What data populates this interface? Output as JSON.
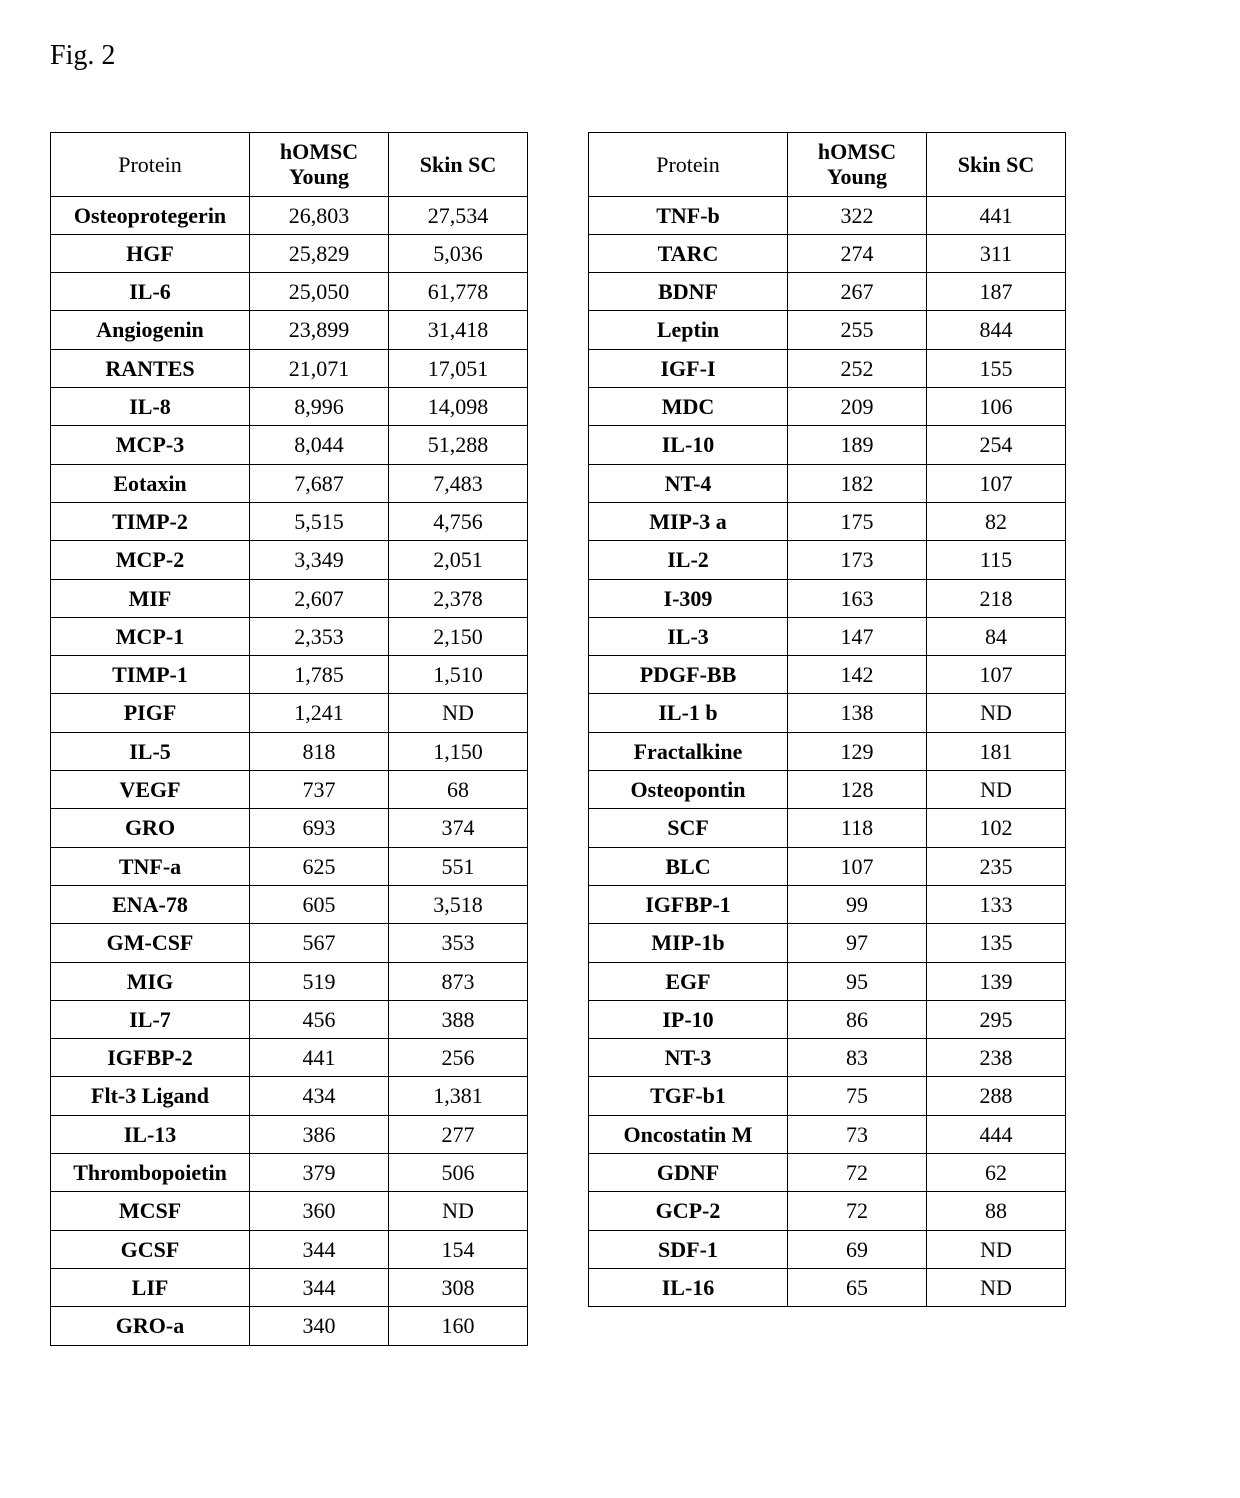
{
  "figure_label": "Fig. 2",
  "headers": {
    "protein": "Protein",
    "homsc": "hOMSC Young",
    "skin": "Skin SC"
  },
  "left_rows": [
    {
      "p": "Osteoprotegerin",
      "a": "26,803",
      "b": "27,534"
    },
    {
      "p": "HGF",
      "a": "25,829",
      "b": "5,036"
    },
    {
      "p": "IL-6",
      "a": "25,050",
      "b": "61,778"
    },
    {
      "p": "Angiogenin",
      "a": "23,899",
      "b": "31,418"
    },
    {
      "p": "RANTES",
      "a": "21,071",
      "b": "17,051"
    },
    {
      "p": "IL-8",
      "a": "8,996",
      "b": "14,098"
    },
    {
      "p": "MCP-3",
      "a": "8,044",
      "b": "51,288"
    },
    {
      "p": "Eotaxin",
      "a": "7,687",
      "b": "7,483"
    },
    {
      "p": "TIMP-2",
      "a": "5,515",
      "b": "4,756"
    },
    {
      "p": "MCP-2",
      "a": "3,349",
      "b": "2,051"
    },
    {
      "p": "MIF",
      "a": "2,607",
      "b": "2,378"
    },
    {
      "p": "MCP-1",
      "a": "2,353",
      "b": "2,150"
    },
    {
      "p": "TIMP-1",
      "a": "1,785",
      "b": "1,510"
    },
    {
      "p": "PIGF",
      "a": "1,241",
      "b": "ND"
    },
    {
      "p": "IL-5",
      "a": "818",
      "b": "1,150"
    },
    {
      "p": "VEGF",
      "a": "737",
      "b": "68"
    },
    {
      "p": "GRO",
      "a": "693",
      "b": "374"
    },
    {
      "p": "TNF-a",
      "a": "625",
      "b": "551"
    },
    {
      "p": "ENA-78",
      "a": "605",
      "b": "3,518"
    },
    {
      "p": "GM-CSF",
      "a": "567",
      "b": "353"
    },
    {
      "p": "MIG",
      "a": "519",
      "b": "873"
    },
    {
      "p": "IL-7",
      "a": "456",
      "b": "388"
    },
    {
      "p": "IGFBP-2",
      "a": "441",
      "b": "256"
    },
    {
      "p": "Flt-3 Ligand",
      "a": "434",
      "b": "1,381"
    },
    {
      "p": "IL-13",
      "a": "386",
      "b": "277"
    },
    {
      "p": "Thrombopoietin",
      "a": "379",
      "b": "506"
    },
    {
      "p": "MCSF",
      "a": "360",
      "b": "ND"
    },
    {
      "p": "GCSF",
      "a": "344",
      "b": "154"
    },
    {
      "p": "LIF",
      "a": "344",
      "b": "308"
    },
    {
      "p": "GRO-a",
      "a": "340",
      "b": "160"
    }
  ],
  "right_rows": [
    {
      "p": "TNF-b",
      "a": "322",
      "b": "441"
    },
    {
      "p": "TARC",
      "a": "274",
      "b": "311"
    },
    {
      "p": "BDNF",
      "a": "267",
      "b": "187"
    },
    {
      "p": "Leptin",
      "a": "255",
      "b": "844"
    },
    {
      "p": "IGF-I",
      "a": "252",
      "b": "155"
    },
    {
      "p": "MDC",
      "a": "209",
      "b": "106"
    },
    {
      "p": "IL-10",
      "a": "189",
      "b": "254"
    },
    {
      "p": "NT-4",
      "a": "182",
      "b": "107"
    },
    {
      "p": "MIP-3 a",
      "a": "175",
      "b": "82"
    },
    {
      "p": "IL-2",
      "a": "173",
      "b": "115"
    },
    {
      "p": "I-309",
      "a": "163",
      "b": "218"
    },
    {
      "p": "IL-3",
      "a": "147",
      "b": "84"
    },
    {
      "p": "PDGF-BB",
      "a": "142",
      "b": "107"
    },
    {
      "p": "IL-1 b",
      "a": "138",
      "b": "ND"
    },
    {
      "p": "Fractalkine",
      "a": "129",
      "b": "181"
    },
    {
      "p": "Osteopontin",
      "a": "128",
      "b": "ND"
    },
    {
      "p": "SCF",
      "a": "118",
      "b": "102"
    },
    {
      "p": "BLC",
      "a": "107",
      "b": "235"
    },
    {
      "p": "IGFBP-1",
      "a": "99",
      "b": "133"
    },
    {
      "p": "MIP-1b",
      "a": "97",
      "b": "135"
    },
    {
      "p": "EGF",
      "a": "95",
      "b": "139"
    },
    {
      "p": "IP-10",
      "a": "86",
      "b": "295"
    },
    {
      "p": "NT-3",
      "a": "83",
      "b": "238"
    },
    {
      "p": "TGF-b1",
      "a": "75",
      "b": "288"
    },
    {
      "p": "Oncostatin M",
      "a": "73",
      "b": "444"
    },
    {
      "p": "GDNF",
      "a": "72",
      "b": "62"
    },
    {
      "p": "GCP-2",
      "a": "72",
      "b": "88"
    },
    {
      "p": "SDF-1",
      "a": "69",
      "b": "ND"
    },
    {
      "p": "IL-16",
      "a": "65",
      "b": "ND"
    }
  ]
}
